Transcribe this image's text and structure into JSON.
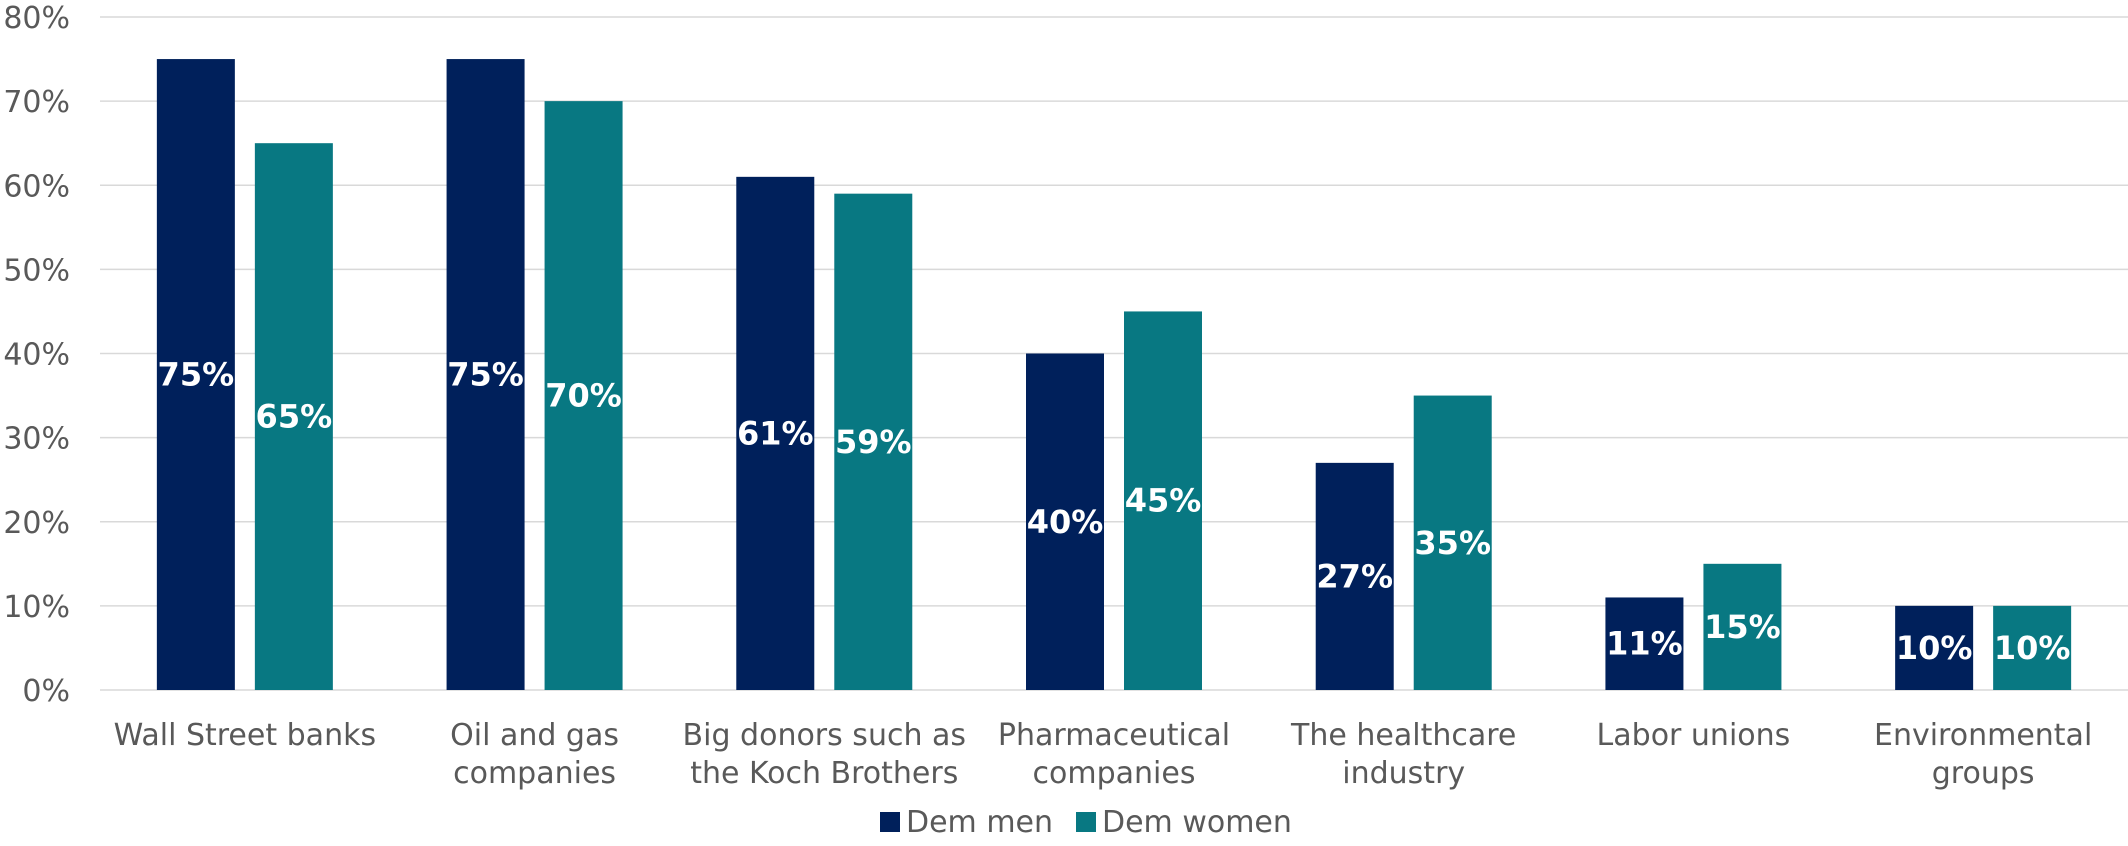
{
  "chart_data": {
    "type": "bar",
    "title": "",
    "xlabel": "",
    "ylabel": "",
    "ylim": [
      0,
      80
    ],
    "yticks": [
      0,
      10,
      20,
      30,
      40,
      50,
      60,
      70,
      80
    ],
    "ytick_labels": [
      "0%",
      "10%",
      "20%",
      "30%",
      "40%",
      "50%",
      "60%",
      "70%",
      "80%"
    ],
    "grid": true,
    "legend_position": "bottom-center",
    "categories": [
      [
        "Wall Street banks"
      ],
      [
        "Oil and gas",
        "companies"
      ],
      [
        "Big donors such as",
        "the Koch Brothers"
      ],
      [
        "Pharmaceutical",
        "companies"
      ],
      [
        "The healthcare",
        "industry"
      ],
      [
        "Labor unions"
      ],
      [
        "Environmental",
        "groups"
      ]
    ],
    "series": [
      {
        "name": "Dem men",
        "color": "#00205b",
        "values": [
          75,
          75,
          61,
          40,
          27,
          11,
          10
        ],
        "labels": [
          "75%",
          "75%",
          "61%",
          "40%",
          "27%",
          "11%",
          "10%"
        ]
      },
      {
        "name": "Dem women",
        "color": "#087882",
        "values": [
          65,
          70,
          59,
          45,
          35,
          15,
          10
        ],
        "labels": [
          "65%",
          "70%",
          "59%",
          "45%",
          "35%",
          "15%",
          "10%"
        ]
      }
    ]
  }
}
